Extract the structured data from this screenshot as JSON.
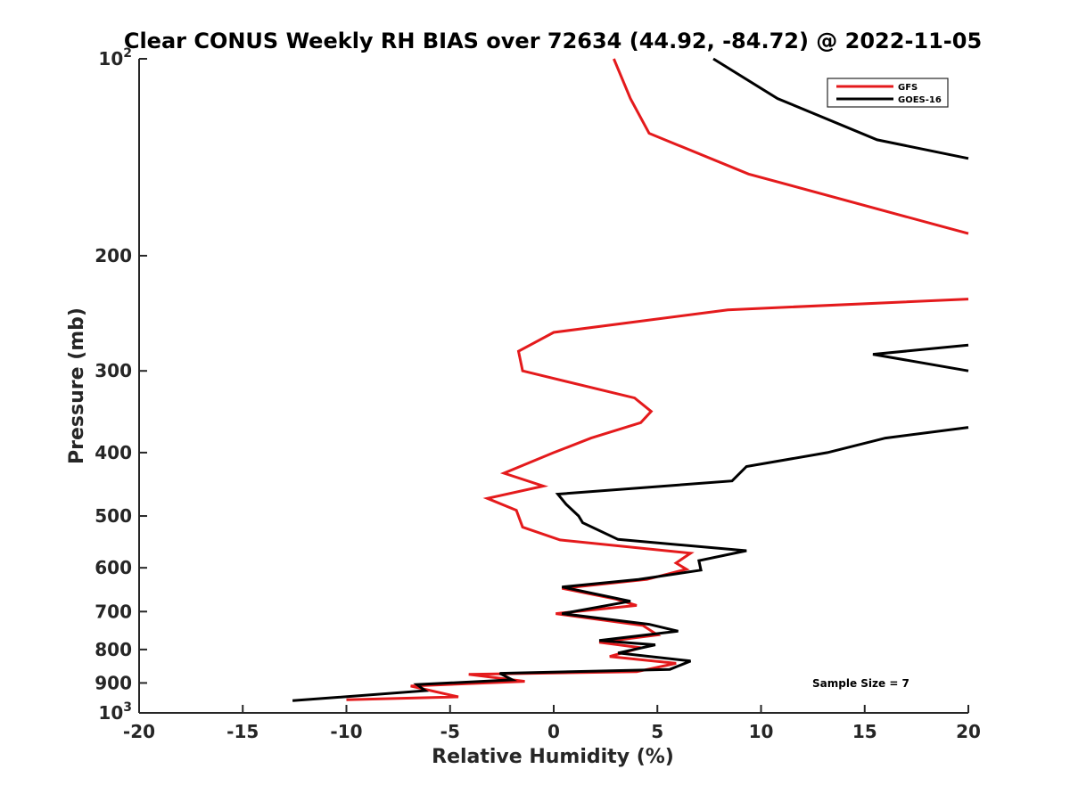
{
  "chart_data": {
    "type": "line",
    "title": "Clear CONUS Weekly RH BIAS over 72634 (44.92, -84.72) @ 2022-11-05",
    "xlabel": "Relative Humidity (%)",
    "ylabel": "Pressure (mb)",
    "xlim": [
      -20,
      20
    ],
    "ylim": [
      100,
      1000
    ],
    "yscale": "log",
    "yreversed": true,
    "grid": false,
    "xticks": [
      -20,
      -15,
      -10,
      -5,
      0,
      5,
      10,
      15,
      20
    ],
    "xtick_labels": [
      "-20",
      "-15",
      "-10",
      "-5",
      "0",
      "5",
      "10",
      "15",
      "20"
    ],
    "yticks": [
      {
        "value": 100,
        "label": "10",
        "sup": "2"
      },
      {
        "value": 200,
        "label": "200"
      },
      {
        "value": 300,
        "label": "300"
      },
      {
        "value": 400,
        "label": "400"
      },
      {
        "value": 500,
        "label": "500"
      },
      {
        "value": 600,
        "label": "600"
      },
      {
        "value": 700,
        "label": "700"
      },
      {
        "value": 800,
        "label": "800"
      },
      {
        "value": 900,
        "label": "900"
      },
      {
        "value": 1000,
        "label": "10",
        "sup": "3"
      }
    ],
    "legend_position": "top-right",
    "annotation": "Sample Size = 7",
    "series": [
      {
        "name": "GFS",
        "color": "#e41a1c",
        "points": [
          [
            2.9,
            100
          ],
          [
            3.7,
            115
          ],
          [
            4.6,
            130
          ],
          [
            9.4,
            150
          ],
          [
            20,
            185
          ],
          [
            20,
            185
          ]
        ]
      },
      {
        "name": "GFS",
        "color": "#e41a1c",
        "points": [
          [
            20,
            233
          ],
          [
            8.4,
            242
          ],
          [
            0,
            262
          ],
          [
            -1.7,
            280
          ],
          [
            -1.5,
            300
          ],
          [
            3.9,
            330
          ],
          [
            4.7,
            346
          ],
          [
            4.2,
            360
          ],
          [
            1.8,
            380
          ],
          [
            0,
            400
          ],
          [
            -2.4,
            430
          ],
          [
            -0.5,
            450
          ],
          [
            -3.2,
            470
          ],
          [
            -1.8,
            490
          ],
          [
            -1.5,
            520
          ],
          [
            0.3,
            544
          ],
          [
            6.6,
            570
          ],
          [
            5.9,
            590
          ],
          [
            6.4,
            603
          ],
          [
            4.5,
            625
          ],
          [
            0.4,
            645
          ],
          [
            3.0,
            670
          ],
          [
            4.0,
            685
          ],
          [
            0.1,
            705
          ],
          [
            4.3,
            735
          ],
          [
            5.0,
            760
          ],
          [
            2.2,
            780
          ],
          [
            4.2,
            795
          ],
          [
            2.7,
            820
          ],
          [
            5.9,
            840
          ],
          [
            4.0,
            865
          ],
          [
            -4.1,
            873
          ],
          [
            -1.4,
            895
          ],
          [
            -6.9,
            910
          ],
          [
            -4.6,
            945
          ],
          [
            -10,
            955
          ]
        ]
      },
      {
        "name": "GOES-16",
        "color": "#000000",
        "points": [
          [
            7.7,
            100
          ],
          [
            10.8,
            115
          ],
          [
            15.6,
            133
          ],
          [
            20,
            142
          ]
        ]
      },
      {
        "name": "GOES-16",
        "color": "#000000",
        "points": [
          [
            20,
            274
          ],
          [
            15.4,
            283
          ],
          [
            20,
            300
          ]
        ]
      },
      {
        "name": "GOES-16",
        "color": "#000000",
        "points": [
          [
            20,
            366
          ],
          [
            16.0,
            380
          ],
          [
            13.2,
            400
          ],
          [
            9.3,
            420
          ],
          [
            8.6,
            442
          ],
          [
            0.2,
            463
          ],
          [
            0.6,
            480
          ],
          [
            1.2,
            500
          ],
          [
            1.4,
            512
          ],
          [
            3.1,
            543
          ],
          [
            9.3,
            565
          ],
          [
            7.0,
            585
          ],
          [
            7.1,
            605
          ],
          [
            4.1,
            625
          ],
          [
            0.4,
            642
          ],
          [
            3.7,
            675
          ],
          [
            0.4,
            705
          ],
          [
            4.6,
            732
          ],
          [
            6.0,
            750
          ],
          [
            2.2,
            775
          ],
          [
            4.9,
            787
          ],
          [
            3.1,
            810
          ],
          [
            6.6,
            833
          ],
          [
            5.6,
            858
          ],
          [
            -2.6,
            870
          ],
          [
            -2.0,
            890
          ],
          [
            -6.6,
            905
          ],
          [
            -6.2,
            925
          ],
          [
            -12.6,
            958
          ]
        ]
      }
    ],
    "legend": [
      {
        "name": "GFS",
        "color": "#e41a1c"
      },
      {
        "name": "GOES-16",
        "color": "#000000"
      }
    ]
  }
}
